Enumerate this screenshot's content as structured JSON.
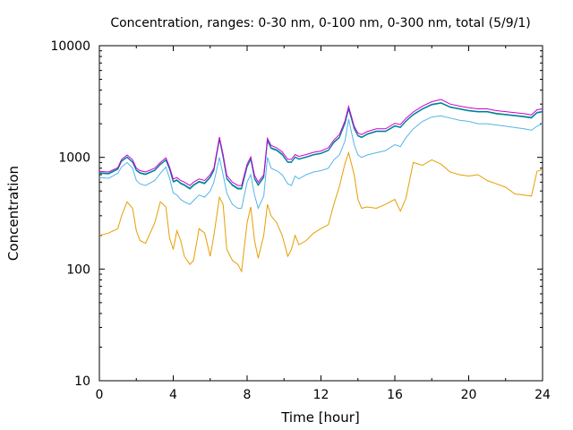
{
  "chart_data": {
    "type": "line",
    "title": "Concentration, ranges: 0-30 nm, 0-100 nm, 0-300 nm, total (5/9/1)",
    "xlabel": "Time [hour]",
    "ylabel": "Concentration",
    "xlim": [
      0,
      24
    ],
    "ylim": [
      10,
      10000
    ],
    "yscale": "log",
    "grid": false,
    "legend": "none",
    "xticks": [
      0,
      4,
      8,
      12,
      16,
      20,
      24
    ],
    "xtick_labels": [
      "0",
      "4",
      "8",
      "12",
      "16",
      "20",
      "24"
    ],
    "yticks": [
      10,
      100,
      1000,
      10000
    ],
    "ytick_labels": [
      "10",
      "100",
      "1000",
      "10000"
    ],
    "series": [
      {
        "color": "#e69f00",
        "x": [
          0,
          0.5,
          1,
          1.2,
          1.5,
          1.8,
          2.0,
          2.2,
          2.5,
          3.0,
          3.3,
          3.6,
          3.8,
          4.0,
          4.2,
          4.4,
          4.6,
          4.9,
          5.1,
          5.4,
          5.7,
          6.0,
          6.2,
          6.5,
          6.7,
          6.9,
          7.2,
          7.5,
          7.7,
          8.0,
          8.2,
          8.4,
          8.6,
          8.9,
          9.1,
          9.3,
          9.6,
          9.9,
          10.2,
          10.4,
          10.6,
          10.8,
          11.2,
          11.6,
          12.0,
          12.4,
          12.7,
          13.0,
          13.3,
          13.5,
          13.8,
          14.0,
          14.2,
          14.5,
          15.0,
          15.5,
          16.0,
          16.3,
          16.6,
          17.0,
          17.5,
          18.0,
          18.5,
          19.0,
          19.5,
          20.0,
          20.5,
          21.0,
          21.5,
          22.0,
          22.5,
          23.0,
          23.4,
          23.7,
          24.0
        ],
        "values": [
          200,
          210,
          230,
          300,
          400,
          350,
          220,
          180,
          170,
          260,
          400,
          360,
          190,
          150,
          220,
          180,
          130,
          110,
          120,
          230,
          210,
          130,
          200,
          440,
          380,
          150,
          120,
          110,
          95,
          260,
          360,
          180,
          125,
          200,
          380,
          300,
          260,
          200,
          130,
          150,
          200,
          165,
          180,
          210,
          230,
          250,
          380,
          550,
          880,
          1100,
          700,
          420,
          350,
          360,
          350,
          380,
          420,
          330,
          430,
          900,
          850,
          950,
          870,
          740,
          700,
          680,
          700,
          620,
          580,
          540,
          470,
          460,
          450,
          750,
          780
        ]
      },
      {
        "color": "#56b4e9",
        "x": [
          0,
          0.5,
          1,
          1.2,
          1.5,
          1.8,
          2.0,
          2.2,
          2.5,
          3.0,
          3.3,
          3.6,
          3.8,
          4.0,
          4.2,
          4.4,
          4.6,
          4.9,
          5.1,
          5.4,
          5.7,
          6.0,
          6.2,
          6.5,
          6.7,
          6.9,
          7.2,
          7.5,
          7.7,
          8.0,
          8.2,
          8.4,
          8.6,
          8.9,
          9.1,
          9.3,
          9.6,
          9.9,
          10.2,
          10.4,
          10.6,
          10.8,
          11.2,
          11.6,
          12.0,
          12.4,
          12.7,
          13.0,
          13.3,
          13.5,
          13.8,
          14.0,
          14.2,
          14.5,
          15.0,
          15.5,
          16.0,
          16.3,
          16.6,
          17.0,
          17.5,
          18.0,
          18.5,
          19.0,
          19.5,
          20.0,
          20.5,
          21.0,
          21.5,
          22.0,
          22.5,
          23.0,
          23.4,
          23.7,
          24.0
        ],
        "values": [
          660,
          650,
          720,
          820,
          900,
          800,
          620,
          580,
          560,
          620,
          720,
          820,
          650,
          480,
          460,
          420,
          400,
          380,
          410,
          460,
          440,
          500,
          600,
          1000,
          700,
          480,
          380,
          350,
          350,
          600,
          700,
          460,
          350,
          450,
          1000,
          800,
          760,
          700,
          580,
          560,
          680,
          640,
          700,
          740,
          760,
          800,
          950,
          1050,
          1400,
          2200,
          1300,
          1050,
          1000,
          1050,
          1100,
          1150,
          1300,
          1250,
          1500,
          1800,
          2100,
          2300,
          2350,
          2250,
          2150,
          2100,
          2000,
          2000,
          1950,
          1900,
          1850,
          1800,
          1750,
          1900,
          2000
        ]
      },
      {
        "color": "#009e73",
        "x": [
          0,
          0.5,
          1,
          1.2,
          1.5,
          1.8,
          2.0,
          2.2,
          2.5,
          3.0,
          3.3,
          3.6,
          3.8,
          4.0,
          4.2,
          4.4,
          4.6,
          4.9,
          5.1,
          5.4,
          5.7,
          6.0,
          6.2,
          6.5,
          6.7,
          6.9,
          7.2,
          7.5,
          7.7,
          8.0,
          8.2,
          8.4,
          8.6,
          8.9,
          9.1,
          9.3,
          9.6,
          9.9,
          10.2,
          10.4,
          10.6,
          10.8,
          11.2,
          11.6,
          12.0,
          12.4,
          12.7,
          13.0,
          13.3,
          13.5,
          13.8,
          14.0,
          14.2,
          14.5,
          15.0,
          15.5,
          16.0,
          16.3,
          16.6,
          17.0,
          17.5,
          18.0,
          18.5,
          19.0,
          19.5,
          20.0,
          20.5,
          21.0,
          21.5,
          22.0,
          22.5,
          23.0,
          23.4,
          23.7,
          24.0
        ],
        "values": [
          720,
          710,
          780,
          920,
          1000,
          900,
          760,
          720,
          700,
          760,
          860,
          940,
          780,
          600,
          620,
          580,
          560,
          520,
          560,
          600,
          580,
          660,
          760,
          1450,
          1000,
          640,
          560,
          520,
          520,
          820,
          960,
          640,
          560,
          660,
          1400,
          1200,
          1150,
          1050,
          900,
          900,
          1000,
          960,
          1000,
          1050,
          1080,
          1150,
          1350,
          1500,
          2000,
          2700,
          1800,
          1550,
          1500,
          1600,
          1700,
          1700,
          1900,
          1850,
          2100,
          2400,
          2700,
          2950,
          3050,
          2800,
          2700,
          2600,
          2550,
          2550,
          2450,
          2400,
          2350,
          2300,
          2250,
          2500,
          2550
        ]
      },
      {
        "color": "#0072b2",
        "x": [
          0,
          0.5,
          1,
          1.2,
          1.5,
          1.8,
          2.0,
          2.2,
          2.5,
          3.0,
          3.3,
          3.6,
          3.8,
          4.0,
          4.2,
          4.4,
          4.6,
          4.9,
          5.1,
          5.4,
          5.7,
          6.0,
          6.2,
          6.5,
          6.7,
          6.9,
          7.2,
          7.5,
          7.7,
          8.0,
          8.2,
          8.4,
          8.6,
          8.9,
          9.1,
          9.3,
          9.6,
          9.9,
          10.2,
          10.4,
          10.6,
          10.8,
          11.2,
          11.6,
          12.0,
          12.4,
          12.7,
          13.0,
          13.3,
          13.5,
          13.8,
          14.0,
          14.2,
          14.5,
          15.0,
          15.5,
          16.0,
          16.3,
          16.6,
          17.0,
          17.5,
          18.0,
          18.5,
          19.0,
          19.5,
          20.0,
          20.5,
          21.0,
          21.5,
          22.0,
          22.5,
          23.0,
          23.4,
          23.7,
          24.0
        ],
        "values": [
          730,
          720,
          790,
          930,
          1010,
          910,
          770,
          730,
          710,
          770,
          870,
          950,
          790,
          610,
          630,
          590,
          570,
          530,
          570,
          610,
          590,
          670,
          770,
          1470,
          1010,
          650,
          570,
          530,
          530,
          830,
          970,
          650,
          570,
          670,
          1420,
          1220,
          1170,
          1070,
          910,
          910,
          1010,
          970,
          1010,
          1060,
          1090,
          1160,
          1370,
          1520,
          2020,
          2740,
          1820,
          1570,
          1520,
          1620,
          1720,
          1720,
          1920,
          1870,
          2120,
          2430,
          2730,
          2990,
          3090,
          2830,
          2730,
          2630,
          2580,
          2580,
          2480,
          2430,
          2380,
          2330,
          2280,
          2530,
          2580
        ]
      },
      {
        "color": "#cc00cc",
        "x": [
          0,
          0.5,
          1,
          1.2,
          1.5,
          1.8,
          2.0,
          2.2,
          2.5,
          3.0,
          3.3,
          3.6,
          3.8,
          4.0,
          4.2,
          4.4,
          4.6,
          4.9,
          5.1,
          5.4,
          5.7,
          6.0,
          6.2,
          6.5,
          6.7,
          6.9,
          7.2,
          7.5,
          7.7,
          8.0,
          8.2,
          8.4,
          8.6,
          8.9,
          9.1,
          9.3,
          9.6,
          9.9,
          10.2,
          10.4,
          10.6,
          10.8,
          11.2,
          11.6,
          12.0,
          12.4,
          12.7,
          13.0,
          13.3,
          13.5,
          13.8,
          14.0,
          14.2,
          14.5,
          15.0,
          15.5,
          16.0,
          16.3,
          16.6,
          17.0,
          17.5,
          18.0,
          18.5,
          19.0,
          19.5,
          20.0,
          20.5,
          21.0,
          21.5,
          22.0,
          22.5,
          23.0,
          23.4,
          23.7,
          24.0
        ],
        "values": [
          750,
          740,
          810,
          960,
          1050,
          950,
          800,
          760,
          740,
          800,
          900,
          990,
          820,
          640,
          660,
          620,
          600,
          560,
          600,
          640,
          620,
          700,
          800,
          1520,
          1060,
          690,
          600,
          560,
          560,
          870,
          1010,
          690,
          600,
          700,
          1480,
          1280,
          1220,
          1120,
          960,
          960,
          1060,
          1020,
          1060,
          1110,
          1140,
          1220,
          1430,
          1600,
          2120,
          2860,
          1900,
          1650,
          1600,
          1700,
          1800,
          1800,
          2020,
          1970,
          2230,
          2550,
          2880,
          3150,
          3300,
          3000,
          2880,
          2780,
          2720,
          2720,
          2620,
          2570,
          2510,
          2460,
          2400,
          2670,
          2720
        ]
      }
    ]
  }
}
